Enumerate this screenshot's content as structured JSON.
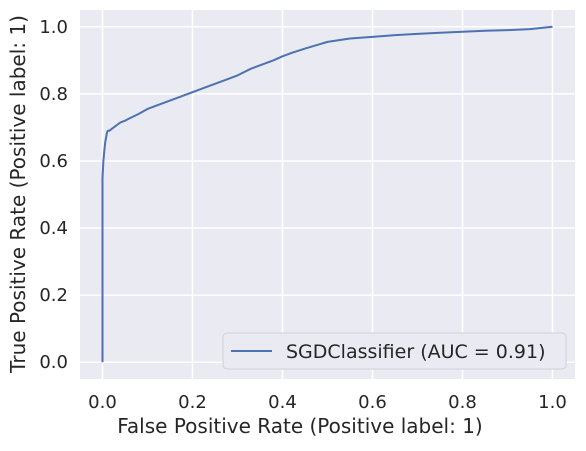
{
  "chart_data": {
    "type": "line",
    "title": "",
    "xlabel": "False Positive Rate (Positive label: 1)",
    "ylabel": "True Positive Rate (Positive label: 1)",
    "xlim": [
      -0.05,
      1.05
    ],
    "ylim": [
      -0.05,
      1.05
    ],
    "x_ticks": [
      0.0,
      0.2,
      0.4,
      0.6,
      0.8,
      1.0
    ],
    "y_ticks": [
      0.0,
      0.2,
      0.4,
      0.6,
      0.8,
      1.0
    ],
    "x_tick_labels": [
      "0.0",
      "0.2",
      "0.4",
      "0.6",
      "0.8",
      "1.0"
    ],
    "y_tick_labels": [
      "0.0",
      "0.2",
      "0.4",
      "0.6",
      "0.8",
      "1.0"
    ],
    "grid": true,
    "legend_position": "lower-right",
    "style": {
      "background": "#eaeaf2",
      "grid_color": "#ffffff",
      "series_color": "#4c72b0"
    },
    "series": [
      {
        "name": "SGDClassifier (AUC = 0.91)",
        "x": [
          0.0,
          0.0,
          0.0,
          0.002,
          0.004,
          0.006,
          0.008,
          0.01,
          0.012,
          0.015,
          0.02,
          0.03,
          0.04,
          0.05,
          0.06,
          0.08,
          0.1,
          0.12,
          0.15,
          0.18,
          0.2,
          0.22,
          0.25,
          0.28,
          0.3,
          0.33,
          0.35,
          0.38,
          0.4,
          0.42,
          0.45,
          0.48,
          0.5,
          0.55,
          0.6,
          0.65,
          0.7,
          0.75,
          0.8,
          0.85,
          0.9,
          0.95,
          1.0
        ],
        "y": [
          0.0,
          0.3,
          0.55,
          0.6,
          0.63,
          0.655,
          0.67,
          0.685,
          0.69,
          0.69,
          0.695,
          0.705,
          0.715,
          0.72,
          0.727,
          0.74,
          0.755,
          0.765,
          0.78,
          0.795,
          0.805,
          0.815,
          0.83,
          0.845,
          0.855,
          0.875,
          0.885,
          0.9,
          0.912,
          0.922,
          0.935,
          0.947,
          0.955,
          0.965,
          0.97,
          0.975,
          0.979,
          0.982,
          0.985,
          0.988,
          0.99,
          0.993,
          1.0
        ]
      }
    ]
  }
}
